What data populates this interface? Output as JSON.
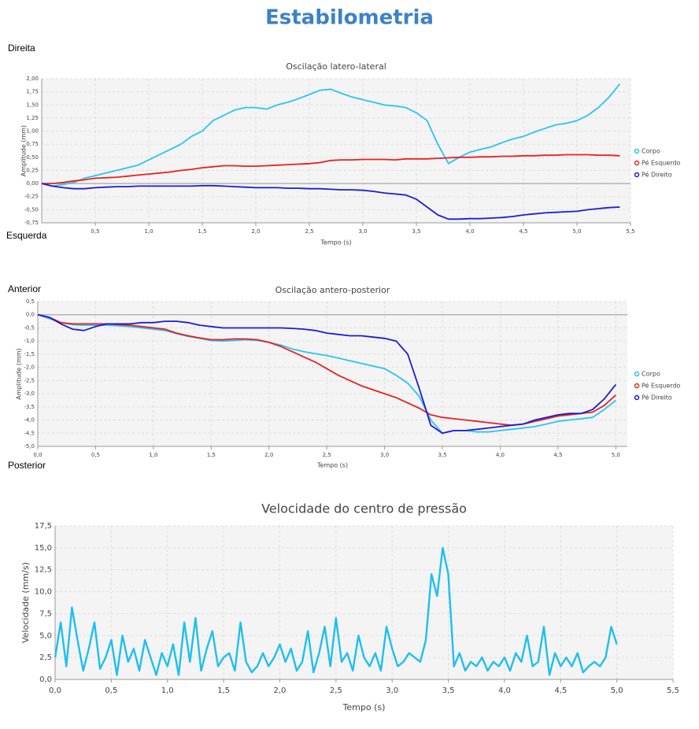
{
  "header": {
    "title": "Estabilometria"
  },
  "labels": {
    "right": "Direita",
    "left": "Esquerda",
    "anterior": "Anterior",
    "posterior": "Posterior"
  },
  "chart_data": [
    {
      "type": "line",
      "title": "Oscilação latero-lateral",
      "x_label": "Tempo (s)",
      "y_label": "Amplitude (mm)",
      "grid": true,
      "zero_line": true,
      "legend": "right",
      "xlim": [
        0,
        5.5
      ],
      "ylim": [
        -0.75,
        2.0
      ],
      "xticks": [
        {
          "value": 0.5,
          "label": "0,5"
        },
        {
          "value": 1.0,
          "label": "1,0"
        },
        {
          "value": 1.5,
          "label": "1,5"
        },
        {
          "value": 2.0,
          "label": "2,0"
        },
        {
          "value": 2.5,
          "label": "2,5"
        },
        {
          "value": 3.0,
          "label": "3,0"
        },
        {
          "value": 3.5,
          "label": "3,5"
        },
        {
          "value": 4.0,
          "label": "4,0"
        },
        {
          "value": 4.5,
          "label": "4,5"
        },
        {
          "value": 5.0,
          "label": "5,0"
        },
        {
          "value": 5.5,
          "label": "5,5"
        }
      ],
      "yticks": [
        {
          "value": -0.75,
          "label": "-0,75"
        },
        {
          "value": -0.5,
          "label": "-0,50"
        },
        {
          "value": -0.25,
          "label": "-0,25"
        },
        {
          "value": 0,
          "label": "0,00"
        },
        {
          "value": 0.25,
          "label": "0,25"
        },
        {
          "value": 0.5,
          "label": "0,50"
        },
        {
          "value": 0.75,
          "label": "0,75"
        },
        {
          "value": 1.0,
          "label": "1,00"
        },
        {
          "value": 1.25,
          "label": "1,25"
        },
        {
          "value": 1.5,
          "label": "1,50"
        },
        {
          "value": 1.75,
          "label": "1,75"
        },
        {
          "value": 2.0,
          "label": "2,00"
        }
      ],
      "x": [
        0,
        0.1,
        0.2,
        0.3,
        0.4,
        0.5,
        0.6,
        0.7,
        0.8,
        0.9,
        1.0,
        1.1,
        1.2,
        1.3,
        1.4,
        1.5,
        1.6,
        1.7,
        1.8,
        1.9,
        2.0,
        2.1,
        2.2,
        2.3,
        2.4,
        2.5,
        2.6,
        2.7,
        2.8,
        2.9,
        3.0,
        3.1,
        3.2,
        3.3,
        3.4,
        3.5,
        3.6,
        3.7,
        3.8,
        3.9,
        4.0,
        4.1,
        4.2,
        4.3,
        4.4,
        4.5,
        4.6,
        4.7,
        4.8,
        4.9,
        5.0,
        5.1,
        5.2,
        5.3,
        5.4
      ],
      "series": [
        {
          "name": "Corpo",
          "color": "#29c4f2",
          "values": [
            0,
            -0.05,
            -0.02,
            0.02,
            0.1,
            0.15,
            0.2,
            0.25,
            0.3,
            0.35,
            0.45,
            0.55,
            0.65,
            0.75,
            0.9,
            1.0,
            1.2,
            1.3,
            1.4,
            1.45,
            1.45,
            1.42,
            1.5,
            1.55,
            1.62,
            1.7,
            1.78,
            1.8,
            1.72,
            1.65,
            1.6,
            1.55,
            1.5,
            1.48,
            1.45,
            1.35,
            1.2,
            0.75,
            0.38,
            0.5,
            0.6,
            0.65,
            0.7,
            0.78,
            0.85,
            0.9,
            0.98,
            1.05,
            1.12,
            1.15,
            1.2,
            1.3,
            1.45,
            1.65,
            1.9
          ]
        },
        {
          "name": "Pé Esquerdo",
          "color": "#e52222",
          "values": [
            0,
            0,
            0.02,
            0.05,
            0.07,
            0.1,
            0.11,
            0.12,
            0.14,
            0.16,
            0.18,
            0.2,
            0.22,
            0.25,
            0.27,
            0.3,
            0.32,
            0.34,
            0.34,
            0.33,
            0.33,
            0.34,
            0.35,
            0.36,
            0.37,
            0.38,
            0.4,
            0.44,
            0.45,
            0.45,
            0.46,
            0.46,
            0.46,
            0.45,
            0.47,
            0.47,
            0.47,
            0.48,
            0.49,
            0.5,
            0.5,
            0.51,
            0.51,
            0.52,
            0.52,
            0.53,
            0.53,
            0.54,
            0.54,
            0.55,
            0.55,
            0.55,
            0.54,
            0.54,
            0.53
          ]
        },
        {
          "name": "Pé Direito",
          "color": "#1c1cd6",
          "values": [
            0,
            -0.05,
            -0.08,
            -0.1,
            -0.1,
            -0.08,
            -0.07,
            -0.06,
            -0.06,
            -0.05,
            -0.05,
            -0.05,
            -0.05,
            -0.05,
            -0.05,
            -0.04,
            -0.04,
            -0.05,
            -0.06,
            -0.07,
            -0.08,
            -0.08,
            -0.08,
            -0.09,
            -0.09,
            -0.1,
            -0.1,
            -0.11,
            -0.12,
            -0.12,
            -0.13,
            -0.15,
            -0.18,
            -0.2,
            -0.22,
            -0.3,
            -0.45,
            -0.6,
            -0.68,
            -0.68,
            -0.67,
            -0.67,
            -0.66,
            -0.65,
            -0.63,
            -0.6,
            -0.58,
            -0.56,
            -0.55,
            -0.54,
            -0.53,
            -0.5,
            -0.48,
            -0.46,
            -0.45
          ]
        }
      ]
    },
    {
      "type": "line",
      "title": "Oscilação antero-posterior",
      "x_label": "Tempo (s)",
      "y_label": "Amplitude (mm)",
      "grid": true,
      "zero_line": true,
      "legend": "right",
      "xlim": [
        0,
        5.1
      ],
      "ylim": [
        -5.0,
        0.5
      ],
      "xticks": [
        {
          "value": 0,
          "label": "0,0"
        },
        {
          "value": 0.5,
          "label": "0,5"
        },
        {
          "value": 1.0,
          "label": "1,0"
        },
        {
          "value": 1.5,
          "label": "1,5"
        },
        {
          "value": 2.0,
          "label": "2,0"
        },
        {
          "value": 2.5,
          "label": "2,5"
        },
        {
          "value": 3.0,
          "label": "3,0"
        },
        {
          "value": 3.5,
          "label": "3,5"
        },
        {
          "value": 4.0,
          "label": "4,0"
        },
        {
          "value": 4.5,
          "label": "4,5"
        },
        {
          "value": 5.0,
          "label": "5,0"
        }
      ],
      "yticks": [
        {
          "value": -5.0,
          "label": "-5,0"
        },
        {
          "value": -4.5,
          "label": "-4,5"
        },
        {
          "value": -4.0,
          "label": "-4,0"
        },
        {
          "value": -3.5,
          "label": "-3,5"
        },
        {
          "value": -3.0,
          "label": "-3,0"
        },
        {
          "value": -2.5,
          "label": "-2,5"
        },
        {
          "value": -2.0,
          "label": "-2,0"
        },
        {
          "value": -1.5,
          "label": "-1,5"
        },
        {
          "value": -1.0,
          "label": "-1,0"
        },
        {
          "value": -0.5,
          "label": "-0,5"
        },
        {
          "value": 0,
          "label": "0,0"
        },
        {
          "value": 0.5,
          "label": "0,5"
        }
      ],
      "x": [
        0,
        0.1,
        0.2,
        0.3,
        0.4,
        0.5,
        0.6,
        0.7,
        0.8,
        0.9,
        1.0,
        1.1,
        1.2,
        1.3,
        1.4,
        1.5,
        1.6,
        1.7,
        1.8,
        1.9,
        2.0,
        2.1,
        2.2,
        2.3,
        2.4,
        2.5,
        2.6,
        2.7,
        2.8,
        2.9,
        3.0,
        3.1,
        3.2,
        3.3,
        3.4,
        3.5,
        3.6,
        3.7,
        3.8,
        3.9,
        4.0,
        4.1,
        4.2,
        4.3,
        4.4,
        4.5,
        4.6,
        4.7,
        4.8,
        4.9,
        5.0
      ],
      "series": [
        {
          "name": "Corpo",
          "color": "#29c4f2",
          "values": [
            0,
            -0.15,
            -0.3,
            -0.38,
            -0.4,
            -0.4,
            -0.4,
            -0.42,
            -0.45,
            -0.5,
            -0.55,
            -0.6,
            -0.72,
            -0.82,
            -0.9,
            -0.98,
            -1.0,
            -0.98,
            -0.95,
            -0.98,
            -1.05,
            -1.15,
            -1.3,
            -1.4,
            -1.48,
            -1.55,
            -1.65,
            -1.75,
            -1.85,
            -1.95,
            -2.05,
            -2.3,
            -2.6,
            -3.1,
            -4.0,
            -4.5,
            -4.4,
            -4.4,
            -4.45,
            -4.45,
            -4.4,
            -4.35,
            -4.3,
            -4.25,
            -4.15,
            -4.05,
            -4.0,
            -3.95,
            -3.9,
            -3.6,
            -3.25
          ]
        },
        {
          "name": "Pé Esquerdo",
          "color": "#e52222",
          "values": [
            0,
            -0.1,
            -0.3,
            -0.35,
            -0.35,
            -0.35,
            -0.35,
            -0.38,
            -0.4,
            -0.45,
            -0.5,
            -0.55,
            -0.7,
            -0.8,
            -0.88,
            -0.95,
            -0.95,
            -0.92,
            -0.92,
            -0.95,
            -1.05,
            -1.2,
            -1.4,
            -1.6,
            -1.8,
            -2.05,
            -2.3,
            -2.5,
            -2.7,
            -2.85,
            -3.0,
            -3.15,
            -3.35,
            -3.55,
            -3.8,
            -3.9,
            -3.95,
            -4.0,
            -4.05,
            -4.1,
            -4.15,
            -4.2,
            -4.15,
            -4.05,
            -3.95,
            -3.85,
            -3.8,
            -3.75,
            -3.7,
            -3.45,
            -3.05
          ]
        },
        {
          "name": "Pé Direito",
          "color": "#1c1cd6",
          "values": [
            0,
            -0.1,
            -0.35,
            -0.55,
            -0.6,
            -0.45,
            -0.35,
            -0.35,
            -0.35,
            -0.3,
            -0.3,
            -0.25,
            -0.25,
            -0.3,
            -0.4,
            -0.45,
            -0.5,
            -0.5,
            -0.5,
            -0.5,
            -0.5,
            -0.5,
            -0.52,
            -0.55,
            -0.6,
            -0.7,
            -0.75,
            -0.8,
            -0.8,
            -0.85,
            -0.9,
            -1.0,
            -1.5,
            -2.8,
            -4.2,
            -4.5,
            -4.4,
            -4.4,
            -4.35,
            -4.3,
            -4.25,
            -4.2,
            -4.15,
            -4.0,
            -3.9,
            -3.8,
            -3.75,
            -3.75,
            -3.6,
            -3.2,
            -2.65
          ]
        }
      ]
    },
    {
      "type": "line",
      "title": "Velocidade do centro de pressão",
      "x_label": "Tempo (s)",
      "y_label": "Velocidade (mm/s)",
      "grid": true,
      "color": "#1ebff0",
      "xlim": [
        0,
        5.5
      ],
      "ylim": [
        0,
        17.5
      ],
      "xticks": [
        {
          "value": 0,
          "label": "0,0"
        },
        {
          "value": 0.5,
          "label": "0,5"
        },
        {
          "value": 1.0,
          "label": "1,0"
        },
        {
          "value": 1.5,
          "label": "1,5"
        },
        {
          "value": 2.0,
          "label": "2,0"
        },
        {
          "value": 2.5,
          "label": "2,5"
        },
        {
          "value": 3.0,
          "label": "3,0"
        },
        {
          "value": 3.5,
          "label": "3,5"
        },
        {
          "value": 4.0,
          "label": "4,0"
        },
        {
          "value": 4.5,
          "label": "4,5"
        },
        {
          "value": 5.0,
          "label": "5,0"
        },
        {
          "value": 5.5,
          "label": "5,5"
        }
      ],
      "yticks": [
        {
          "value": 0,
          "label": "0,0"
        },
        {
          "value": 2.5,
          "label": "2,5"
        },
        {
          "value": 5.0,
          "label": "5,0"
        },
        {
          "value": 7.5,
          "label": "7,5"
        },
        {
          "value": 10.0,
          "label": "10,0"
        },
        {
          "value": 12.5,
          "label": "12,5"
        },
        {
          "value": 15.0,
          "label": "15,0"
        },
        {
          "value": 17.5,
          "label": "17,5"
        }
      ],
      "x": [
        0,
        0.05,
        0.1,
        0.15,
        0.2,
        0.25,
        0.3,
        0.35,
        0.4,
        0.45,
        0.5,
        0.55,
        0.6,
        0.65,
        0.7,
        0.75,
        0.8,
        0.85,
        0.9,
        0.95,
        1.0,
        1.05,
        1.1,
        1.15,
        1.2,
        1.25,
        1.3,
        1.35,
        1.4,
        1.45,
        1.5,
        1.55,
        1.6,
        1.65,
        1.7,
        1.75,
        1.8,
        1.85,
        1.9,
        1.95,
        2.0,
        2.05,
        2.1,
        2.15,
        2.2,
        2.25,
        2.3,
        2.35,
        2.4,
        2.45,
        2.5,
        2.55,
        2.6,
        2.65,
        2.7,
        2.75,
        2.8,
        2.85,
        2.9,
        2.95,
        3.0,
        3.05,
        3.1,
        3.15,
        3.2,
        3.25,
        3.3,
        3.35,
        3.4,
        3.45,
        3.5,
        3.55,
        3.6,
        3.65,
        3.7,
        3.75,
        3.8,
        3.85,
        3.9,
        3.95,
        4.0,
        4.05,
        4.1,
        4.15,
        4.2,
        4.25,
        4.3,
        4.35,
        4.4,
        4.45,
        4.5,
        4.55,
        4.6,
        4.65,
        4.7,
        4.75,
        4.8,
        4.85,
        4.9,
        4.95,
        5.0
      ],
      "values": [
        2.5,
        6.5,
        1.5,
        8.2,
        4.5,
        1.0,
        3.5,
        6.5,
        1.2,
        2.5,
        4.5,
        0.5,
        5.0,
        2.0,
        3.5,
        1.0,
        4.5,
        2.5,
        0.5,
        3.0,
        1.5,
        4.0,
        0.5,
        6.5,
        2.0,
        7.0,
        1.0,
        3.5,
        5.5,
        1.5,
        2.5,
        3.0,
        1.0,
        6.5,
        2.0,
        0.8,
        1.5,
        3.0,
        1.5,
        2.5,
        4.0,
        2.0,
        3.5,
        1.0,
        2.0,
        5.5,
        0.8,
        3.0,
        6.0,
        1.5,
        7.0,
        2.0,
        3.0,
        1.0,
        5.0,
        2.5,
        1.5,
        3.0,
        1.0,
        6.0,
        3.5,
        1.5,
        2.0,
        3.0,
        2.5,
        2.0,
        4.5,
        12.0,
        9.5,
        15.0,
        12.0,
        1.5,
        3.0,
        1.0,
        2.0,
        1.5,
        2.5,
        1.0,
        2.0,
        1.5,
        2.5,
        1.0,
        3.0,
        2.0,
        5.0,
        1.5,
        2.0,
        6.0,
        0.5,
        3.0,
        1.5,
        2.5,
        1.5,
        3.0,
        0.8,
        1.5,
        2.0,
        1.5,
        2.5,
        6.0,
        4.0
      ]
    }
  ]
}
